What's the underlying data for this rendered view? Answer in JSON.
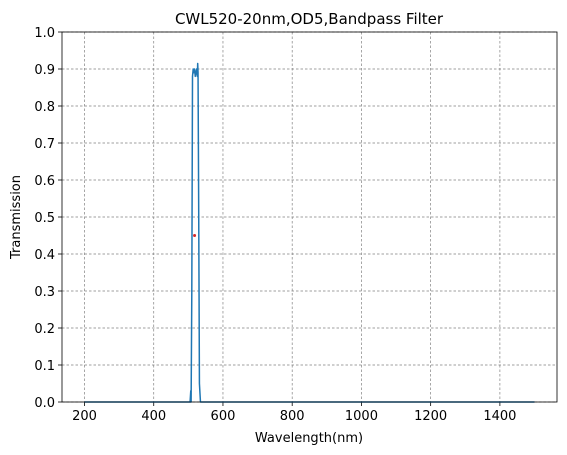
{
  "chart_data": {
    "type": "line",
    "title": "CWL520-20nm,OD5,Bandpass Filter",
    "x_label": "Wavelength(nm)",
    "y_label": "Transmission",
    "x": [
      200,
      500,
      505,
      507,
      508,
      510,
      512,
      514,
      516,
      518,
      520,
      522,
      524,
      526,
      527,
      528,
      530,
      532,
      535,
      1500
    ],
    "series": [
      {
        "color": "#1f77b4",
        "values": [
          0,
          0,
          0,
          0.03,
          0,
          0.3,
          0.88,
          0.9,
          0.89,
          0.9,
          0.88,
          0.89,
          0.9,
          0.88,
          0.915,
          0.89,
          0.5,
          0.05,
          0,
          0
        ]
      }
    ],
    "marker": {
      "x": 518,
      "y": 0.45,
      "color": "#d62728"
    },
    "xlim": [
      135,
      1565
    ],
    "ylim": [
      0,
      1
    ],
    "xticks": [
      200,
      400,
      600,
      800,
      1000,
      1200,
      1400
    ],
    "yticks": [
      {
        "value": 0,
        "label": "0.0"
      },
      0.1,
      0.2,
      0.3,
      0.4,
      0.5,
      0.6,
      0.7,
      0.8,
      0.9,
      {
        "value": 1,
        "label": "1.0"
      }
    ],
    "grid": true
  }
}
